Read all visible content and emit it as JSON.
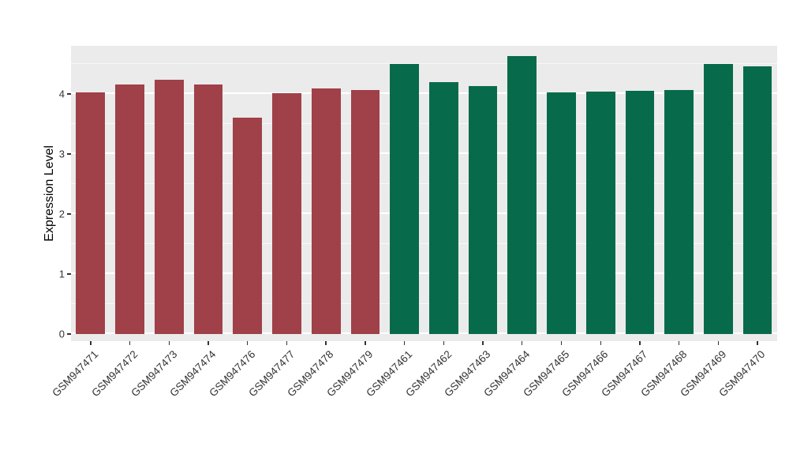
{
  "chart_data": {
    "type": "bar",
    "title": "",
    "xlabel": "",
    "ylabel": "Expression Level",
    "ylim": [
      0,
      4.8
    ],
    "yticks": [
      0,
      1,
      2,
      3,
      4
    ],
    "grid": true,
    "legend_position": "none",
    "categories": [
      "GSM947471",
      "GSM947472",
      "GSM947473",
      "GSM947474",
      "GSM947476",
      "GSM947477",
      "GSM947478",
      "GSM947479",
      "GSM947461",
      "GSM947462",
      "GSM947463",
      "GSM947464",
      "GSM947465",
      "GSM947466",
      "GSM947467",
      "GSM947468",
      "GSM947469",
      "GSM947470"
    ],
    "values": [
      4.03,
      4.16,
      4.24,
      4.15,
      3.6,
      4.01,
      4.09,
      4.06,
      4.5,
      4.2,
      4.13,
      4.63,
      4.03,
      4.04,
      4.05,
      4.07,
      4.5,
      4.46
    ],
    "bar_colors": [
      "#A04048",
      "#A04048",
      "#A04048",
      "#A04048",
      "#A04048",
      "#A04048",
      "#A04048",
      "#A04048",
      "#076B4B",
      "#076B4B",
      "#076B4B",
      "#076B4B",
      "#076B4B",
      "#076B4B",
      "#076B4B",
      "#076B4B",
      "#076B4B",
      "#076B4B"
    ],
    "group_colors": {
      "group1": "#A04048",
      "group2": "#076B4B"
    },
    "panel_background": "#EBEBEB",
    "grid_color": "#FFFFFF",
    "tick_label_color": "#333333",
    "axis_title_color": "#000000"
  }
}
